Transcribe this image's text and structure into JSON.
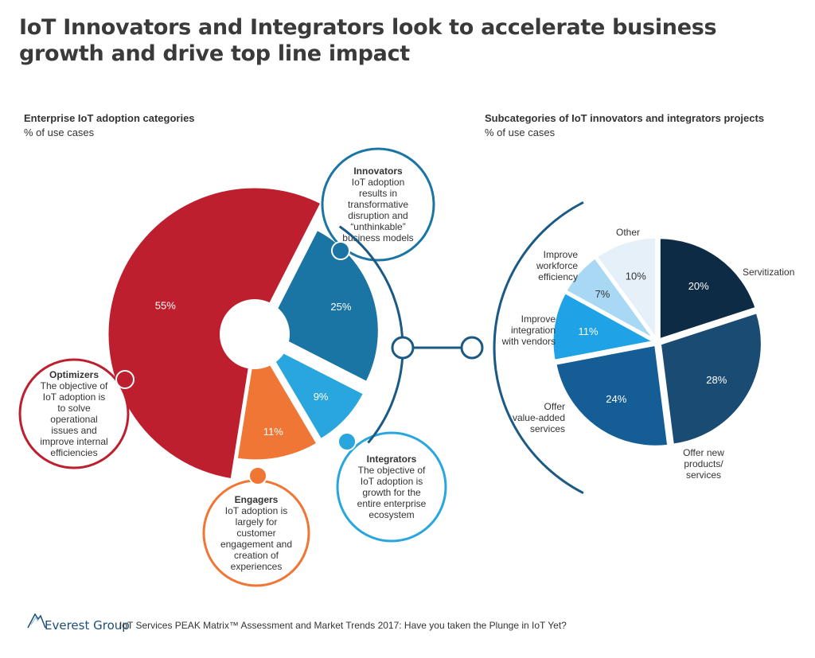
{
  "page": {
    "title": "IoT Innovators and Integrators look to accelerate business growth and drive top line impact",
    "footer_brand": "Everest Group",
    "footer_source": "IoT Services PEAK Matrix™ Assessment and Market Trends 2017: Have you taken the Plunge in IoT Yet?"
  },
  "colors": {
    "optimizers": "#bd1f2e",
    "engagers": "#ef7634",
    "integrators": "#29a6de",
    "innovators": "#1a75a5",
    "connector": "#1b5a85",
    "servitization": "#0d2b45",
    "offer_new": "#1a4c73",
    "offer_value": "#145e95",
    "integration": "#1fa3e6",
    "workforce": "#a9d8f4",
    "other": "#e6f0f8"
  },
  "chart_data": [
    {
      "type": "pie",
      "title": "Enterprise IoT adoption categories",
      "subtitle": "% of use cases",
      "slices": [
        {
          "key": "innovators",
          "label": "Innovators",
          "value": 25,
          "display": "25%",
          "description": "IoT adoption results in transformative disruption and “unthinkable” business models"
        },
        {
          "key": "integrators",
          "label": "Integrators",
          "value": 9,
          "display": "9%",
          "description": "The objective of IoT adoption is growth for the entire enterprise ecosystem"
        },
        {
          "key": "engagers",
          "label": "Engagers",
          "value": 11,
          "display": "11%",
          "description": "IoT adoption is largely for customer engagement and creation of experiences"
        },
        {
          "key": "optimizers",
          "label": "Optimizers",
          "value": 55,
          "display": "55%",
          "description": "The objective of IoT adoption is to solve operational issues and improve internal efficiencies"
        }
      ]
    },
    {
      "type": "pie",
      "title": "Subcategories of IoT innovators and integrators projects",
      "subtitle": "% of use cases",
      "slices": [
        {
          "key": "servitization",
          "label": "Servitization",
          "value": 20,
          "display": "20%"
        },
        {
          "key": "offer_new",
          "label": "Offer new products/ services",
          "value": 28,
          "display": "28%"
        },
        {
          "key": "offer_value",
          "label": "Offer value-added services",
          "value": 24,
          "display": "24%"
        },
        {
          "key": "integration",
          "label": "Improve integration with vendors",
          "value": 11,
          "display": "11%"
        },
        {
          "key": "workforce",
          "label": "Improve workforce efficiency",
          "value": 7,
          "display": "7%"
        },
        {
          "key": "other",
          "label": "Other",
          "value": 10,
          "display": "10%"
        }
      ]
    }
  ]
}
